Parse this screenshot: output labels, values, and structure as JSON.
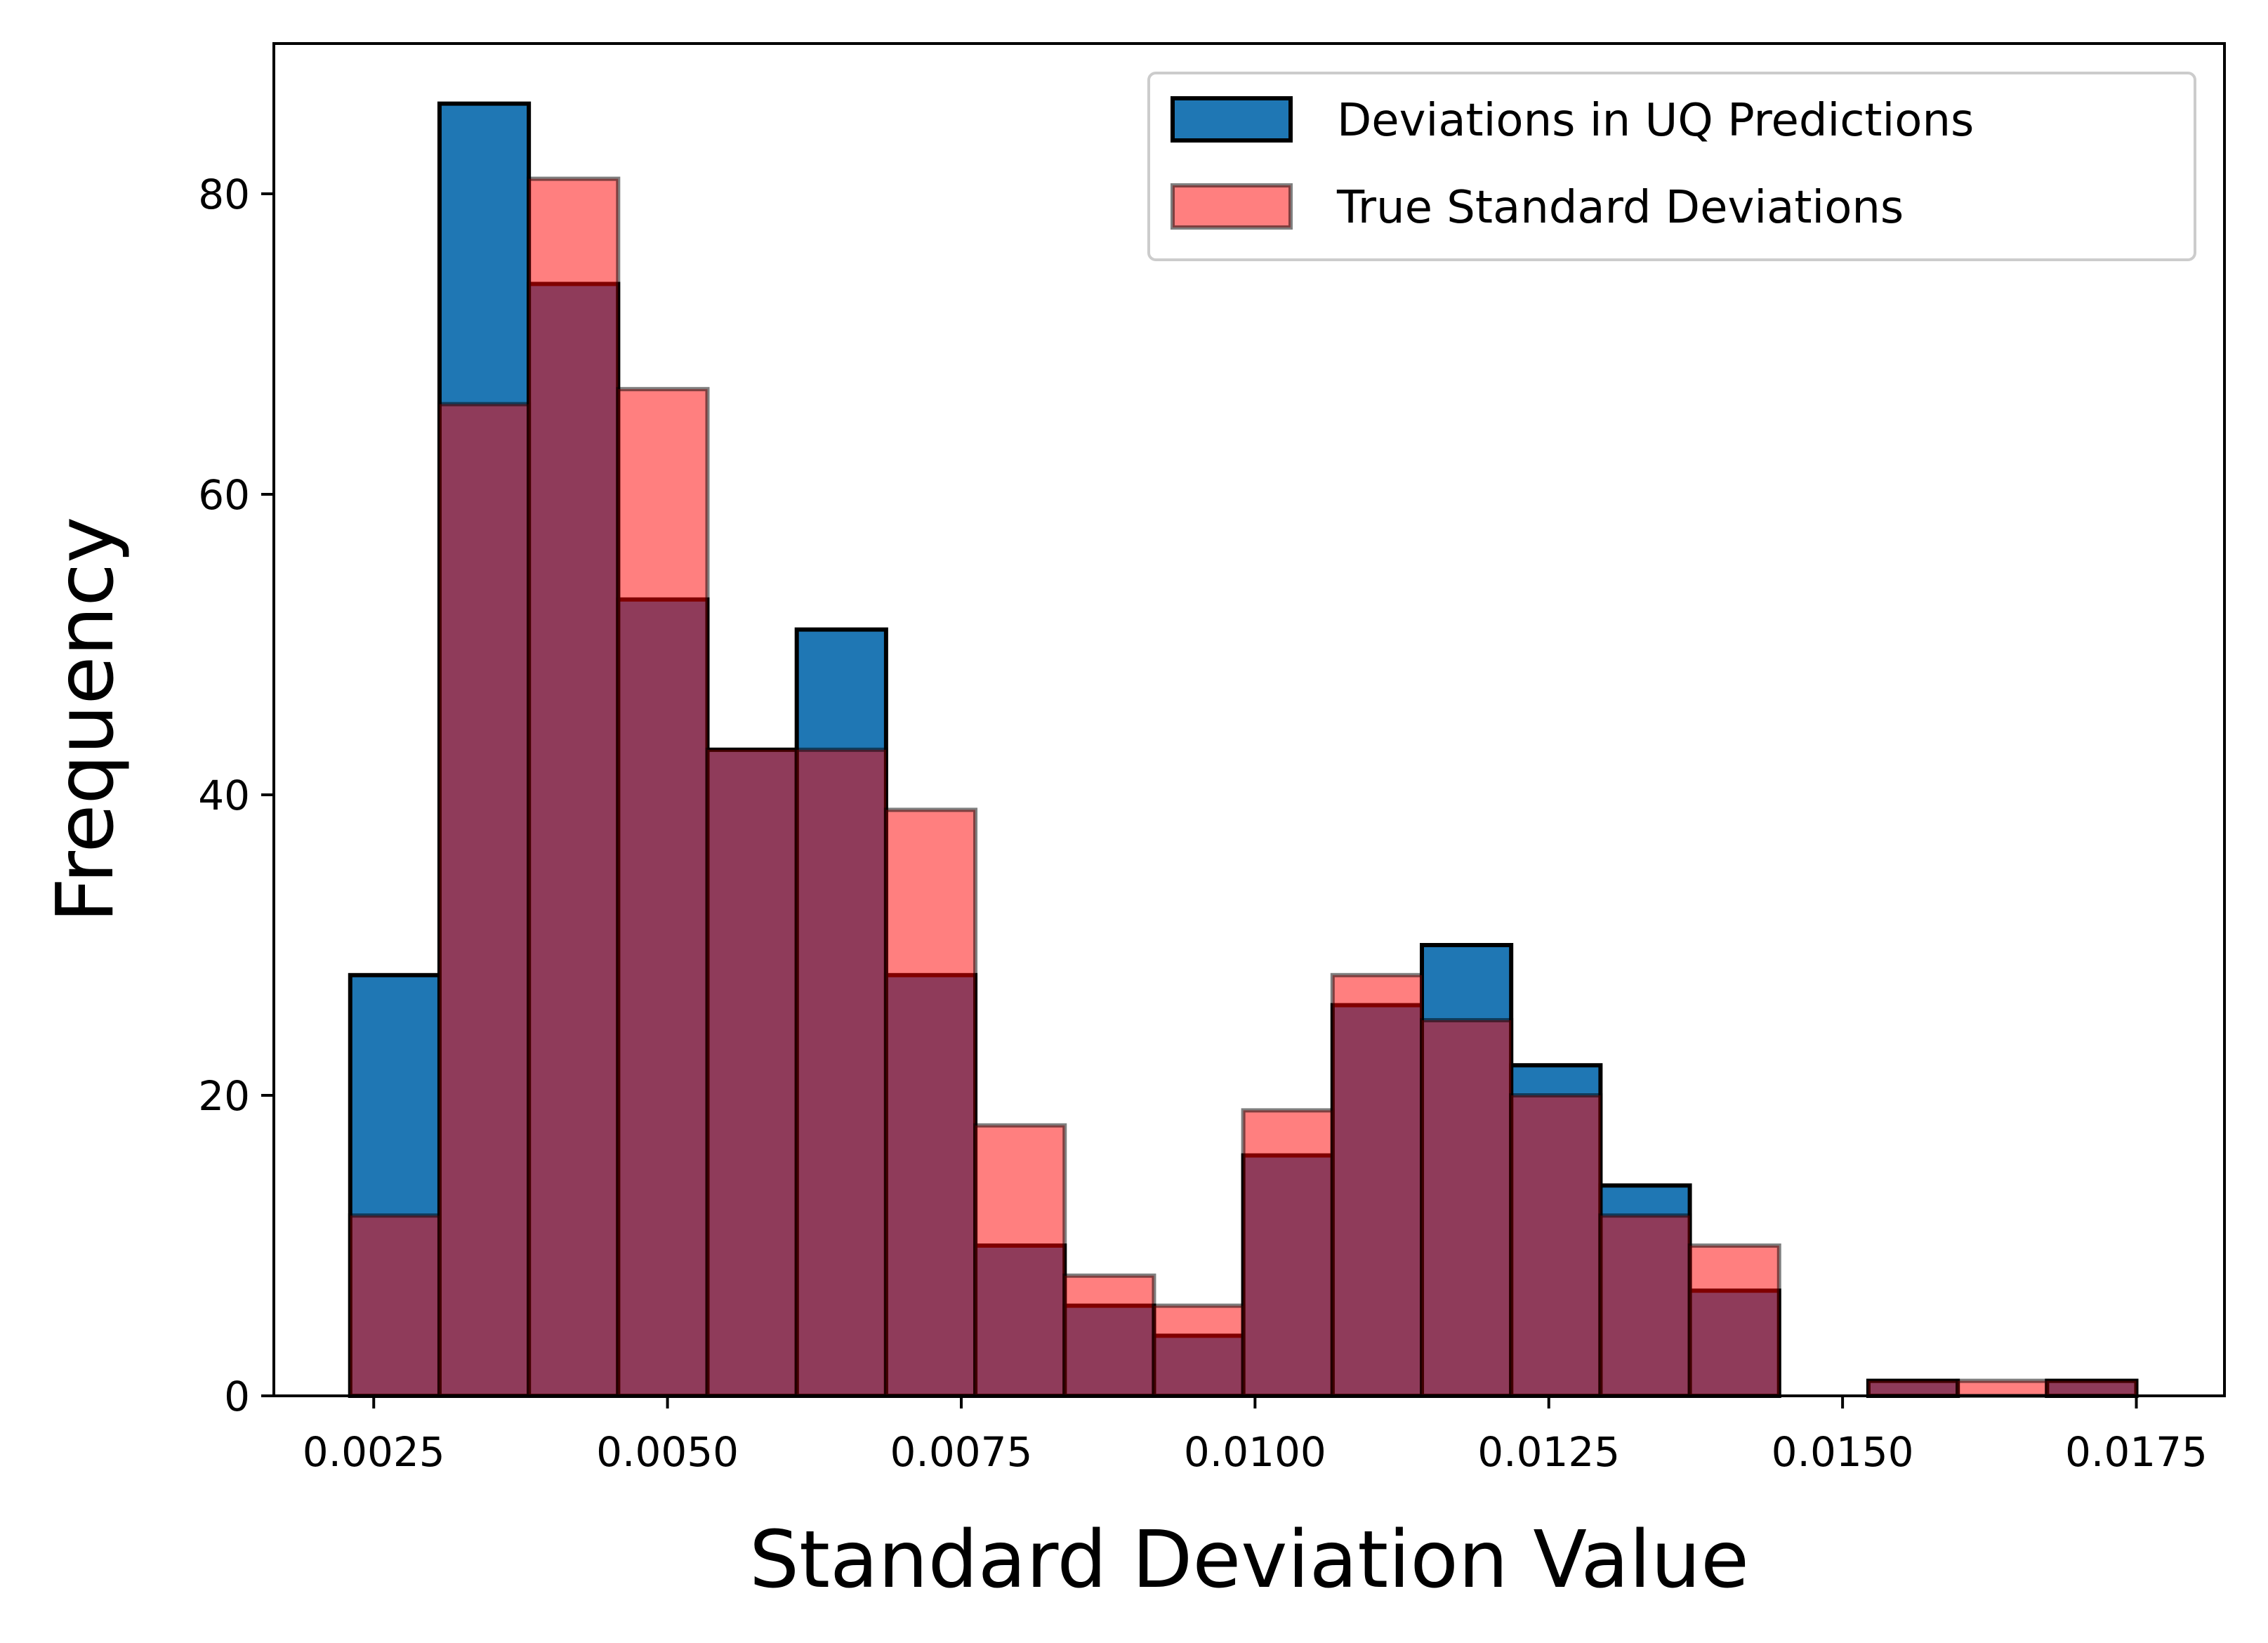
{
  "chart_data": {
    "type": "bar",
    "subtype": "overlaid-histogram",
    "title": "",
    "xlabel": "Standard Deviation Value",
    "ylabel": "Frequency",
    "xlim": [
      0.00165,
      0.01825
    ],
    "ylim": [
      0,
      90
    ],
    "grid": false,
    "legend_position": "top-right",
    "bin_edges": [
      0.0023,
      0.00306,
      0.00382,
      0.00458,
      0.00534,
      0.0061,
      0.00686,
      0.00762,
      0.00838,
      0.00914,
      0.0099,
      0.01066,
      0.01142,
      0.01218,
      0.01294,
      0.0137,
      0.01446,
      0.01522,
      0.01598,
      0.01674,
      0.0175
    ],
    "x_ticks": [
      {
        "value": 0.0025,
        "label": "0.0025"
      },
      {
        "value": 0.005,
        "label": "0.0050"
      },
      {
        "value": 0.0075,
        "label": "0.0075"
      },
      {
        "value": 0.01,
        "label": "0.0100"
      },
      {
        "value": 0.0125,
        "label": "0.0125"
      },
      {
        "value": 0.015,
        "label": "0.0150"
      },
      {
        "value": 0.0175,
        "label": "0.0175"
      }
    ],
    "y_ticks": [
      {
        "value": 0,
        "label": "0"
      },
      {
        "value": 20,
        "label": "20"
      },
      {
        "value": 40,
        "label": "40"
      },
      {
        "value": 60,
        "label": "60"
      },
      {
        "value": 80,
        "label": "80"
      }
    ],
    "series": [
      {
        "name": "Deviations in UQ Predictions",
        "color": "#1f77b4",
        "edge_color": "#000000",
        "alpha": 1.0,
        "values": [
          28,
          86,
          74,
          53,
          43,
          51,
          28,
          10,
          6,
          4,
          16,
          26,
          30,
          22,
          14,
          7,
          0,
          1,
          0,
          1
        ]
      },
      {
        "name": "True Standard Deviations",
        "color": "#ff0000",
        "edge_color": "#000000",
        "alpha": 0.5,
        "values": [
          12,
          66,
          81,
          67,
          43,
          43,
          39,
          18,
          8,
          6,
          19,
          28,
          25,
          20,
          12,
          10,
          0,
          1,
          1,
          1
        ]
      }
    ]
  }
}
